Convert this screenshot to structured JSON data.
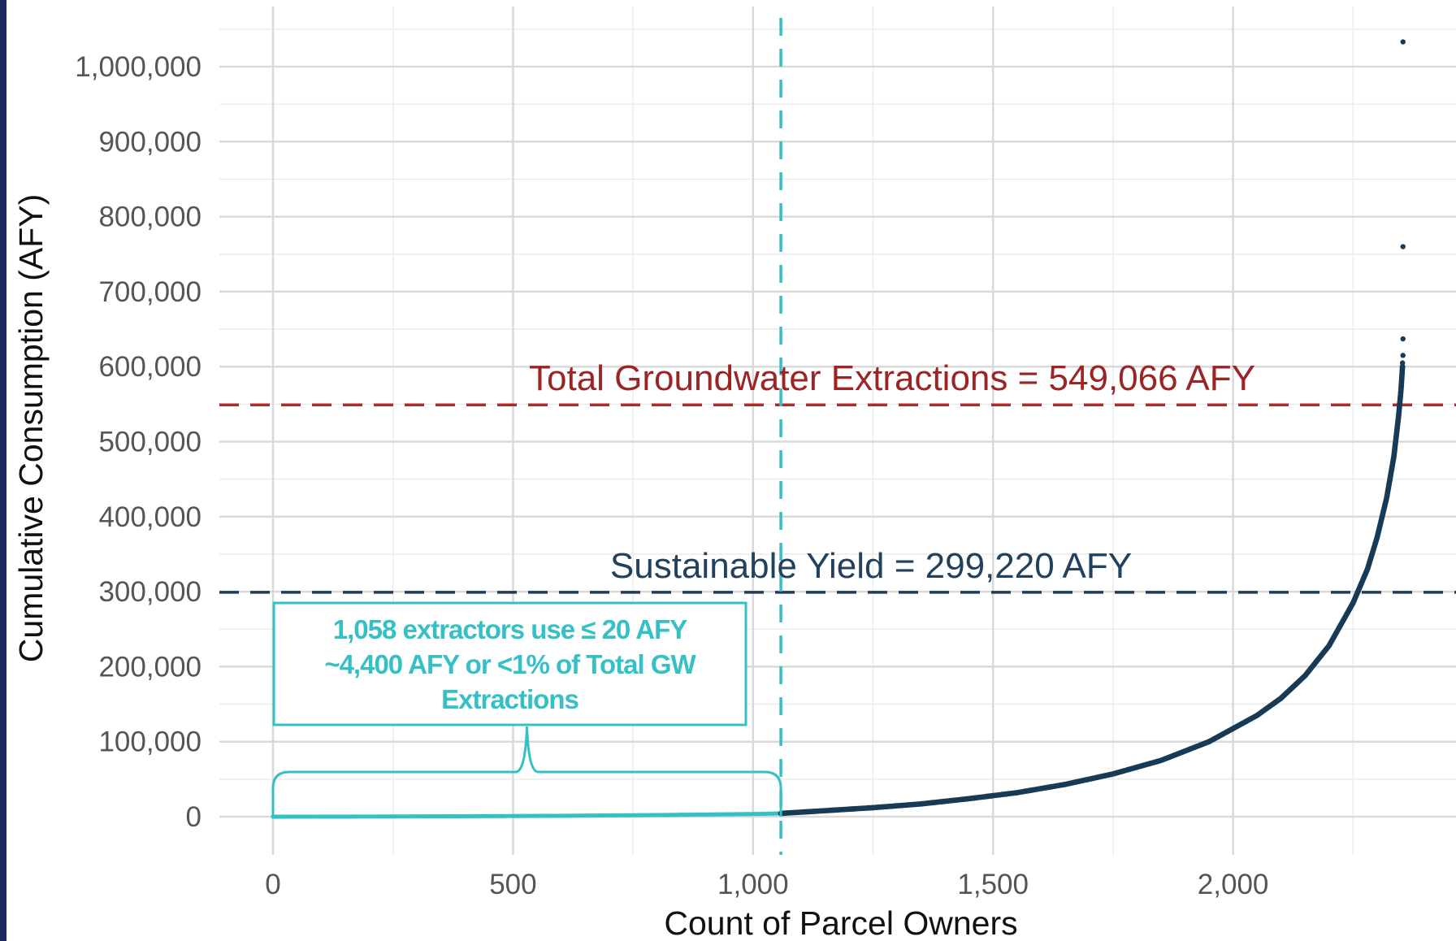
{
  "chart_data": {
    "type": "scatter",
    "title": "",
    "xlabel": "Count of Parcel Owners",
    "ylabel": "Cumulative Consumption (AFY)",
    "xlim": [
      -70,
      2450
    ],
    "ylim": [
      -50000,
      1070000
    ],
    "x_ticks": [
      0,
      500,
      1000,
      1500,
      2000
    ],
    "x_tick_labels": [
      "0",
      "500",
      "1,000",
      "1,500",
      "2,000"
    ],
    "y_ticks": [
      0,
      100000,
      200000,
      300000,
      400000,
      500000,
      600000,
      700000,
      800000,
      900000,
      1000000
    ],
    "y_tick_labels": [
      "0",
      "100,000",
      "200,000",
      "300,000",
      "400,000",
      "500,000",
      "600,000",
      "700,000",
      "800,000",
      "900,000",
      "1,000,000"
    ],
    "grid": true,
    "series": [
      {
        "color": "#35c0c6",
        "x": [
          0,
          200,
          400,
          600,
          800,
          1000,
          1058
        ],
        "y": [
          0,
          200,
          600,
          1200,
          2200,
          3600,
          4400
        ]
      },
      {
        "color": "#173a57",
        "x": [
          1058,
          1150,
          1250,
          1350,
          1450,
          1550,
          1650,
          1750,
          1850,
          1950,
          2050,
          2100,
          2150,
          2200,
          2250,
          2280,
          2300,
          2320,
          2335,
          2345,
          2350,
          2353
        ],
        "y": [
          4400,
          8000,
          12000,
          17000,
          24000,
          32000,
          43000,
          57000,
          75000,
          100000,
          135000,
          158000,
          188000,
          228000,
          285000,
          330000,
          372000,
          425000,
          480000,
          535000,
          570000,
          600000
        ]
      },
      {
        "color": "#173a57",
        "x": [
          2353,
          2354,
          2354,
          2354,
          2354
        ],
        "y": [
          605000,
          615000,
          637000,
          760000,
          1033000
        ]
      }
    ],
    "reference_lines": [
      {
        "orientation": "horizontal",
        "value": 549066,
        "color": "#a82c2c",
        "style": "dashed",
        "label": "Total Groundwater Extractions = 549,066 AFY"
      },
      {
        "orientation": "horizontal",
        "value": 299220,
        "color": "#1d3d5a",
        "style": "dashed",
        "label": "Sustainable Yield = 299,220 AFY"
      },
      {
        "orientation": "vertical",
        "value": 1058,
        "color": "#35c0c6",
        "style": "dashed",
        "label": ""
      }
    ],
    "annotation_box": {
      "color": "#35c0c6",
      "lines": [
        "1,058 extractors use ≤ 20 AFY",
        "~4,400 AFY or <1% of Total GW",
        "Extractions"
      ],
      "brace_x_range": [
        0,
        1058
      ]
    }
  }
}
